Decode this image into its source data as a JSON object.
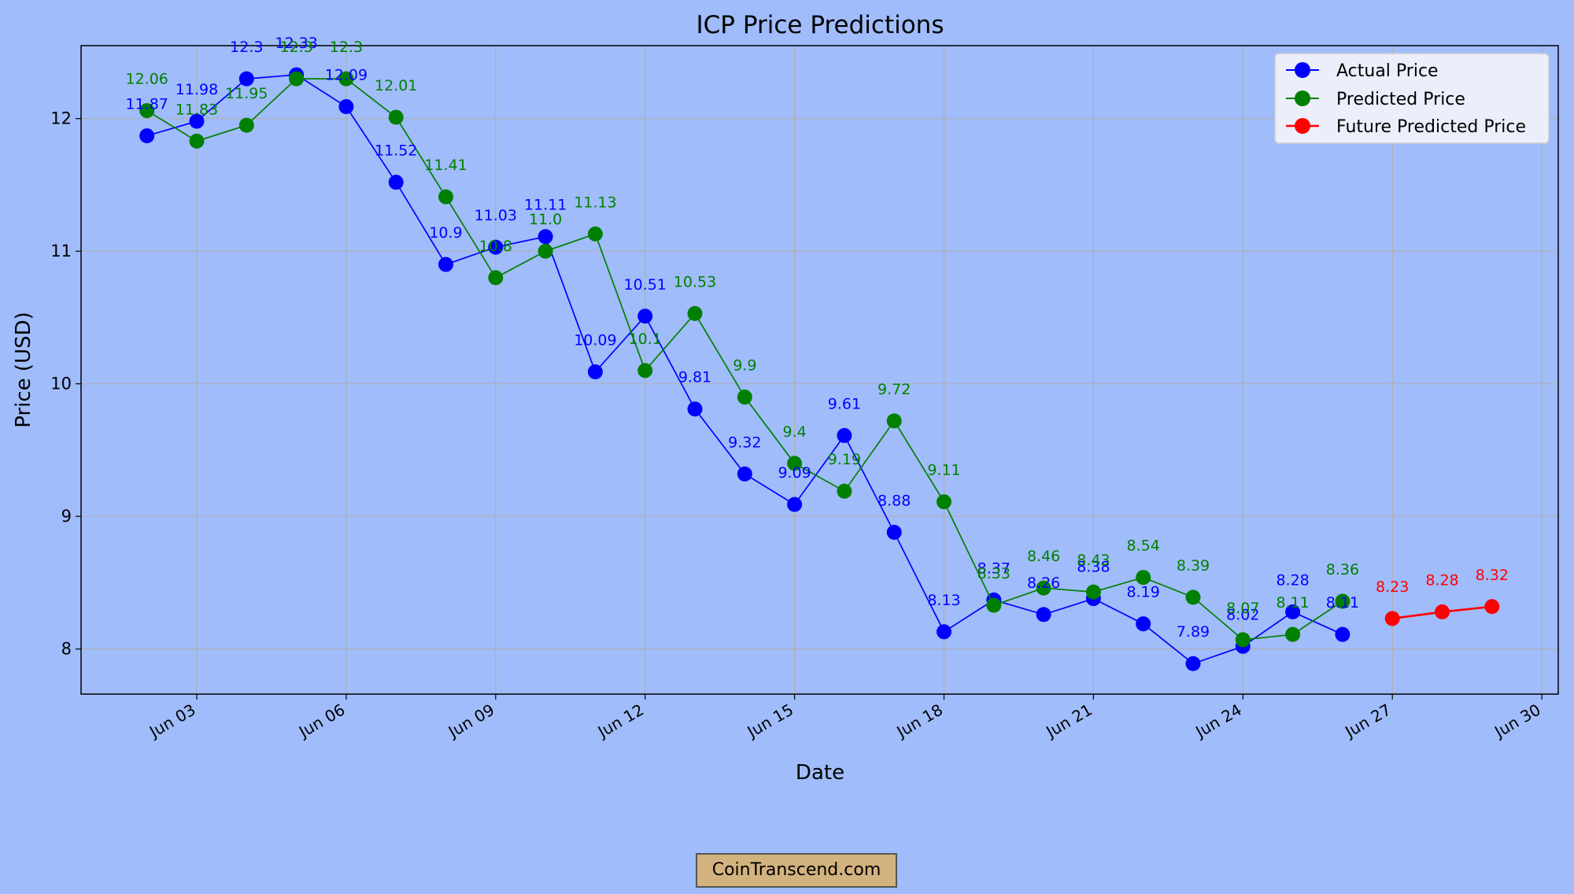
{
  "chart_data": {
    "type": "line",
    "title": "ICP Price Predictions",
    "xlabel": "Date",
    "ylabel": "Price (USD)",
    "grid": true,
    "legend_position": "top-right",
    "x_ticks": [
      "Jun 03",
      "Jun 06",
      "Jun 09",
      "Jun 12",
      "Jun 15",
      "Jun 18",
      "Jun 21",
      "Jun 24",
      "Jun 27",
      "Jun 30"
    ],
    "y_ticks": [
      "8",
      "9",
      "10",
      "11",
      "12"
    ],
    "ylim": [
      7.66,
      12.55
    ],
    "series": [
      {
        "name": "Actual Price",
        "color": "#0000ff",
        "dates": [
          "Jun 02",
          "Jun 03",
          "Jun 04",
          "Jun 05",
          "Jun 06",
          "Jun 07",
          "Jun 08",
          "Jun 09",
          "Jun 10",
          "Jun 11",
          "Jun 12",
          "Jun 13",
          "Jun 14",
          "Jun 15",
          "Jun 16",
          "Jun 17",
          "Jun 18",
          "Jun 19",
          "Jun 20",
          "Jun 21",
          "Jun 22",
          "Jun 23",
          "Jun 24",
          "Jun 25",
          "Jun 26"
        ],
        "values": [
          11.87,
          11.98,
          12.3,
          12.33,
          12.09,
          11.52,
          10.9,
          11.03,
          11.11,
          10.09,
          10.51,
          9.81,
          9.32,
          9.09,
          9.61,
          8.88,
          8.13,
          8.37,
          8.26,
          8.38,
          8.19,
          7.89,
          8.02,
          8.28,
          8.11
        ]
      },
      {
        "name": "Predicted Price",
        "color": "#008000",
        "dates": [
          "Jun 02",
          "Jun 03",
          "Jun 04",
          "Jun 05",
          "Jun 06",
          "Jun 07",
          "Jun 08",
          "Jun 09",
          "Jun 10",
          "Jun 11",
          "Jun 12",
          "Jun 13",
          "Jun 14",
          "Jun 15",
          "Jun 16",
          "Jun 17",
          "Jun 18",
          "Jun 19",
          "Jun 20",
          "Jun 21",
          "Jun 22",
          "Jun 23",
          "Jun 24",
          "Jun 25",
          "Jun 26"
        ],
        "values": [
          12.06,
          11.83,
          11.95,
          12.3,
          12.3,
          12.01,
          11.41,
          10.8,
          11.0,
          11.13,
          10.1,
          10.53,
          9.9,
          9.4,
          9.19,
          9.72,
          9.11,
          8.33,
          8.46,
          8.43,
          8.54,
          8.39,
          8.07,
          8.11,
          8.36
        ]
      },
      {
        "name": "Future Predicted Price",
        "color": "#ff0000",
        "dates": [
          "Jun 27",
          "Jun 28",
          "Jun 29"
        ],
        "values": [
          8.23,
          8.28,
          8.32
        ]
      }
    ],
    "point_labels": [
      [
        "11.87",
        "11.98",
        "12.3",
        "12.33",
        "12.09",
        "11.52",
        "10.9",
        "11.03",
        "11.11",
        "10.09",
        "10.51",
        "9.81",
        "9.32",
        "9.09",
        "9.61",
        "8.88",
        "8.13",
        "8.37",
        "8.26",
        "8.38",
        "8.19",
        "7.89",
        "8.02",
        "8.28",
        "8.11"
      ],
      [
        "12.06",
        "11.83",
        "11.95",
        "12.3",
        "12.3",
        "12.01",
        "11.41",
        "10.8",
        "11.0",
        "11.13",
        "10.1",
        "10.53",
        "9.9",
        "9.4",
        "9.19",
        "9.72",
        "9.11",
        "8.33",
        "8.46",
        "8.43",
        "8.54",
        "8.39",
        "8.07",
        "8.11",
        "8.36"
      ],
      [
        "8.23",
        "8.28",
        "8.32"
      ]
    ]
  },
  "watermark": "CoinTranscend.com",
  "colors": {
    "background": "#a0bcfb",
    "grid": "#b0b0b0",
    "watermark_bg": "#d2b27e"
  }
}
